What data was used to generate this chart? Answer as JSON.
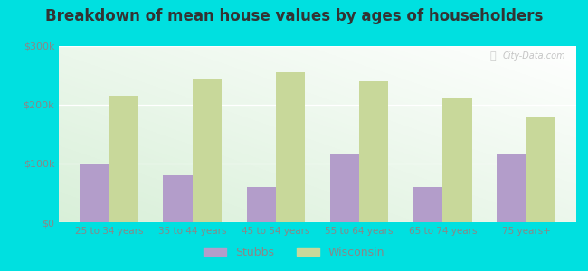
{
  "title": "Breakdown of mean house values by ages of householders",
  "categories": [
    "25 to 34 years",
    "35 to 44 years",
    "45 to 54 years",
    "55 to 64 years",
    "65 to 74 years",
    "75 years+"
  ],
  "stubbs_values": [
    100000,
    80000,
    60000,
    115000,
    60000,
    115000
  ],
  "wisconsin_values": [
    215000,
    245000,
    255000,
    240000,
    210000,
    180000
  ],
  "stubbs_color": "#b39dca",
  "wisconsin_color": "#c8d89a",
  "background_outer": "#00e0e0",
  "title_color": "#333333",
  "tick_color": "#888888",
  "ylim": [
    0,
    300000
  ],
  "yticks": [
    0,
    100000,
    200000,
    300000
  ],
  "ytick_labels": [
    "$0",
    "$100k",
    "$200k",
    "$300k"
  ],
  "bar_width": 0.35,
  "legend_stubbs": "Stubbs",
  "legend_wisconsin": "Wisconsin",
  "title_fontsize": 12,
  "watermark_text": "City-Data.com"
}
